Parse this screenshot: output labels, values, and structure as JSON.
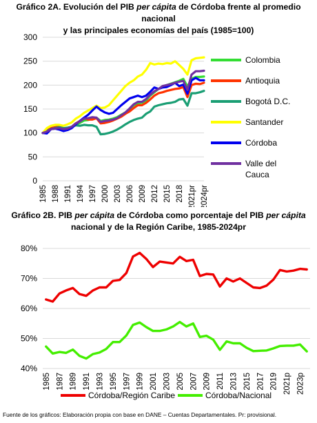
{
  "titles": {
    "chart1": {
      "a": "Gráfico 2A. Evolución del PIB ",
      "b": "per cápita",
      "c": " de Córdoba frente al promedio nacional",
      "d": "y las principales economías del país (1985=100)"
    },
    "chart2": {
      "a": "Gráfico 2B. PIB ",
      "b": "per cápita",
      "c": " de Córdoba como porcentaje del PIB ",
      "d": "per cápita",
      "e": "nacional y de la Región Caribe, 1985-2024pr"
    }
  },
  "footer": "Fuente de los gráficos: Elaboración propia con base en DANE – Cuentas Departamentales. Pr: provisional.",
  "chart_data": [
    {
      "type": "line",
      "title": "Gráfico 2A. Evolución del PIB per cápita de Córdoba frente al promedio nacional y las principales economías del país (1985=100)",
      "x": [
        1985,
        1986,
        1987,
        1988,
        1989,
        1990,
        1991,
        1992,
        1993,
        1994,
        1995,
        1996,
        1997,
        1998,
        1999,
        2000,
        2001,
        2002,
        2003,
        2004,
        2005,
        2006,
        2007,
        2008,
        2009,
        2010,
        2011,
        2012,
        2013,
        2014,
        2015,
        2016,
        2017,
        2018,
        2019,
        2020,
        2021,
        2022,
        2023,
        2024
      ],
      "tick_labels": [
        "1985",
        "1988",
        "1991",
        "1994",
        "1997",
        "2000",
        "2003",
        "2006",
        "2009",
        "2012",
        "2015",
        "2018",
        "2021pr",
        "2024pr"
      ],
      "ylim": [
        0,
        300
      ],
      "yticks": [
        0,
        50,
        100,
        150,
        200,
        250,
        300
      ],
      "grid": true,
      "legend_position": "right",
      "series": [
        {
          "name": "Colombia",
          "color": "#33dd33",
          "values": [
            100,
            104,
            108,
            110,
            112,
            110,
            110,
            113,
            117,
            121,
            126,
            127,
            130,
            132,
            125,
            127,
            128,
            130,
            133,
            138,
            143,
            150,
            158,
            162,
            163,
            168,
            178,
            185,
            192,
            197,
            200,
            203,
            206,
            209,
            213,
            197,
            213,
            217,
            217,
            218
          ]
        },
        {
          "name": "Antioquia",
          "color": "#ff3300",
          "values": [
            100,
            105,
            110,
            112,
            113,
            110,
            109,
            113,
            120,
            125,
            131,
            128,
            128,
            131,
            120,
            121,
            123,
            126,
            130,
            134,
            140,
            145,
            152,
            158,
            158,
            163,
            170,
            178,
            183,
            185,
            188,
            190,
            192,
            193,
            196,
            175,
            200,
            203,
            202,
            205
          ]
        },
        {
          "name": "Bogotá D.C.",
          "color": "#1a9e74",
          "values": [
            100,
            104,
            108,
            110,
            112,
            110,
            111,
            113,
            116,
            115,
            117,
            116,
            116,
            113,
            97,
            98,
            100,
            103,
            107,
            112,
            118,
            123,
            127,
            130,
            132,
            140,
            145,
            155,
            158,
            160,
            162,
            163,
            165,
            170,
            171,
            157,
            183,
            183,
            185,
            188
          ]
        },
        {
          "name": "Santander",
          "color": "#ffff00",
          "values": [
            100,
            110,
            115,
            117,
            117,
            115,
            118,
            122,
            130,
            135,
            142,
            147,
            152,
            157,
            152,
            153,
            158,
            168,
            178,
            188,
            198,
            205,
            210,
            218,
            222,
            232,
            246,
            243,
            245,
            244,
            246,
            245,
            250,
            242,
            234,
            222,
            252,
            256,
            257,
            258
          ]
        },
        {
          "name": "Córdoba",
          "color": "#0000ee",
          "values": [
            100,
            99,
            108,
            109,
            107,
            104,
            106,
            110,
            118,
            125,
            132,
            138,
            147,
            155,
            148,
            143,
            140,
            142,
            150,
            158,
            165,
            172,
            175,
            178,
            175,
            178,
            186,
            195,
            192,
            195,
            196,
            200,
            205,
            198,
            201,
            182,
            210,
            215,
            210,
            210
          ]
        },
        {
          "name": "Valle del Cauca",
          "color": "#7030a0",
          "values": [
            100,
            103,
            108,
            109,
            110,
            108,
            109,
            113,
            120,
            124,
            130,
            131,
            133,
            132,
            123,
            125,
            126,
            128,
            131,
            137,
            143,
            151,
            160,
            165,
            165,
            171,
            180,
            187,
            192,
            198,
            200,
            202,
            205,
            207,
            209,
            190,
            222,
            229,
            229,
            230
          ]
        }
      ]
    },
    {
      "type": "line",
      "title": "Gráfico 2B. PIB per cápita de Córdoba como porcentaje del PIB per cápita nacional y de la Región Caribe, 1985-2024pr",
      "x": [
        1985,
        1986,
        1987,
        1988,
        1989,
        1990,
        1991,
        1992,
        1993,
        1994,
        1995,
        1996,
        1997,
        1998,
        1999,
        2000,
        2001,
        2002,
        2003,
        2004,
        2005,
        2006,
        2007,
        2008,
        2009,
        2010,
        2011,
        2012,
        2013,
        2014,
        2015,
        2016,
        2017,
        2018,
        2019,
        2020,
        2021,
        2022,
        2023,
        2024
      ],
      "tick_labels": [
        "1985",
        "1987",
        "1989",
        "1991",
        "1993",
        "1995",
        "1997",
        "1999",
        "2001",
        "2003",
        "2005",
        "2007",
        "2009",
        "2011",
        "2013",
        "2015",
        "2017",
        "2019",
        "2021p",
        "2023p"
      ],
      "ylim": [
        40,
        80
      ],
      "yticks": [
        "40%",
        "50%",
        "60%",
        "70%",
        "80%"
      ],
      "grid": true,
      "legend_position": "bottom",
      "series": [
        {
          "name": "Córdoba/Región Caribe",
          "color": "#ee0000",
          "values": [
            63,
            62.3,
            65,
            66,
            66.8,
            64.8,
            64.2,
            66,
            67,
            67,
            69.2,
            69.5,
            71.8,
            77.3,
            78.5,
            76.5,
            73.8,
            75.6,
            75.3,
            75,
            77.2,
            75.8,
            76.2,
            70.8,
            71.5,
            71.3,
            67.3,
            70,
            69,
            70,
            68.5,
            67,
            66.8,
            67.6,
            69.6,
            72.8,
            72.3,
            72.6,
            73.2,
            73
          ]
        },
        {
          "name": "Córdoba/Nacional",
          "color": "#44ee00",
          "values": [
            47.3,
            45,
            45.5,
            45.2,
            46.3,
            44.2,
            43.3,
            44.8,
            45.3,
            46.5,
            48.8,
            48.8,
            51,
            54.5,
            55.3,
            53.8,
            52.5,
            52.5,
            53,
            54,
            55.5,
            54,
            55,
            50.5,
            50.9,
            49.6,
            46.2,
            49,
            48.4,
            48.4,
            46.9,
            45.8,
            45.9,
            46,
            46.7,
            47.5,
            47.6,
            47.6,
            48,
            45.7
          ]
        }
      ]
    }
  ]
}
